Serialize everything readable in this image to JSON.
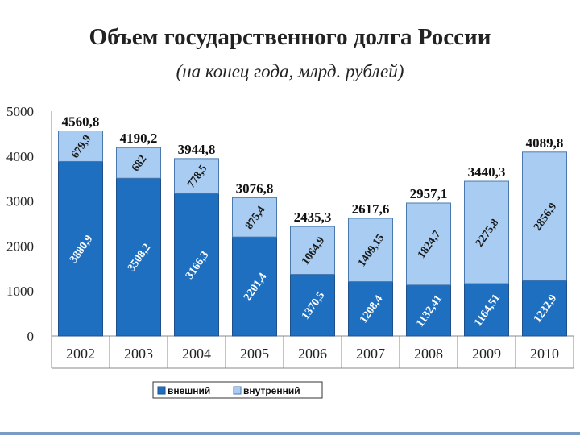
{
  "chart_data": {
    "type": "bar",
    "stacked": true,
    "title": "Объем государственного долга России",
    "subtitle": "(на конец года, млрд. рублей)",
    "categories": [
      "2002",
      "2003",
      "2004",
      "2005",
      "2006",
      "2007",
      "2008",
      "2009",
      "2010"
    ],
    "series": [
      {
        "name": "внешний",
        "color": "#1e6fc0",
        "values": [
          3880.9,
          3508.2,
          3166.3,
          2201.4,
          1370.5,
          1208.4,
          1132.41,
          1164.51,
          1232.9
        ],
        "labels": [
          "3880,9",
          "3508,2",
          "3166,3",
          "2201,4",
          "1370,5",
          "1208,4",
          "1132,41",
          "1164,51",
          "1232,9"
        ]
      },
      {
        "name": "внутренний",
        "color": "#a9cdf2",
        "values": [
          679.9,
          682,
          778.5,
          875.4,
          1064.9,
          1409.15,
          1824.7,
          2275.8,
          2856.9
        ],
        "labels": [
          "679,9",
          "682",
          "778,5",
          "875,4",
          "1064,9",
          "1409,15",
          "1824,7",
          "2275,8",
          "2856,9"
        ]
      }
    ],
    "totals": [
      4560.8,
      4190.2,
      3944.8,
      3076.8,
      2435.3,
      2617.6,
      2957.1,
      3440.3,
      4089.8
    ],
    "total_labels": [
      "4560,8",
      "4190,2",
      "3944,8",
      "3076,8",
      "2435,3",
      "2617,6",
      "2957,1",
      "3440,3",
      "4089,8"
    ],
    "y_ticks": [
      "0",
      "1000",
      "2000",
      "3000",
      "4000",
      "5000"
    ],
    "ylim": [
      0,
      5000
    ],
    "legend_position": "bottom"
  }
}
